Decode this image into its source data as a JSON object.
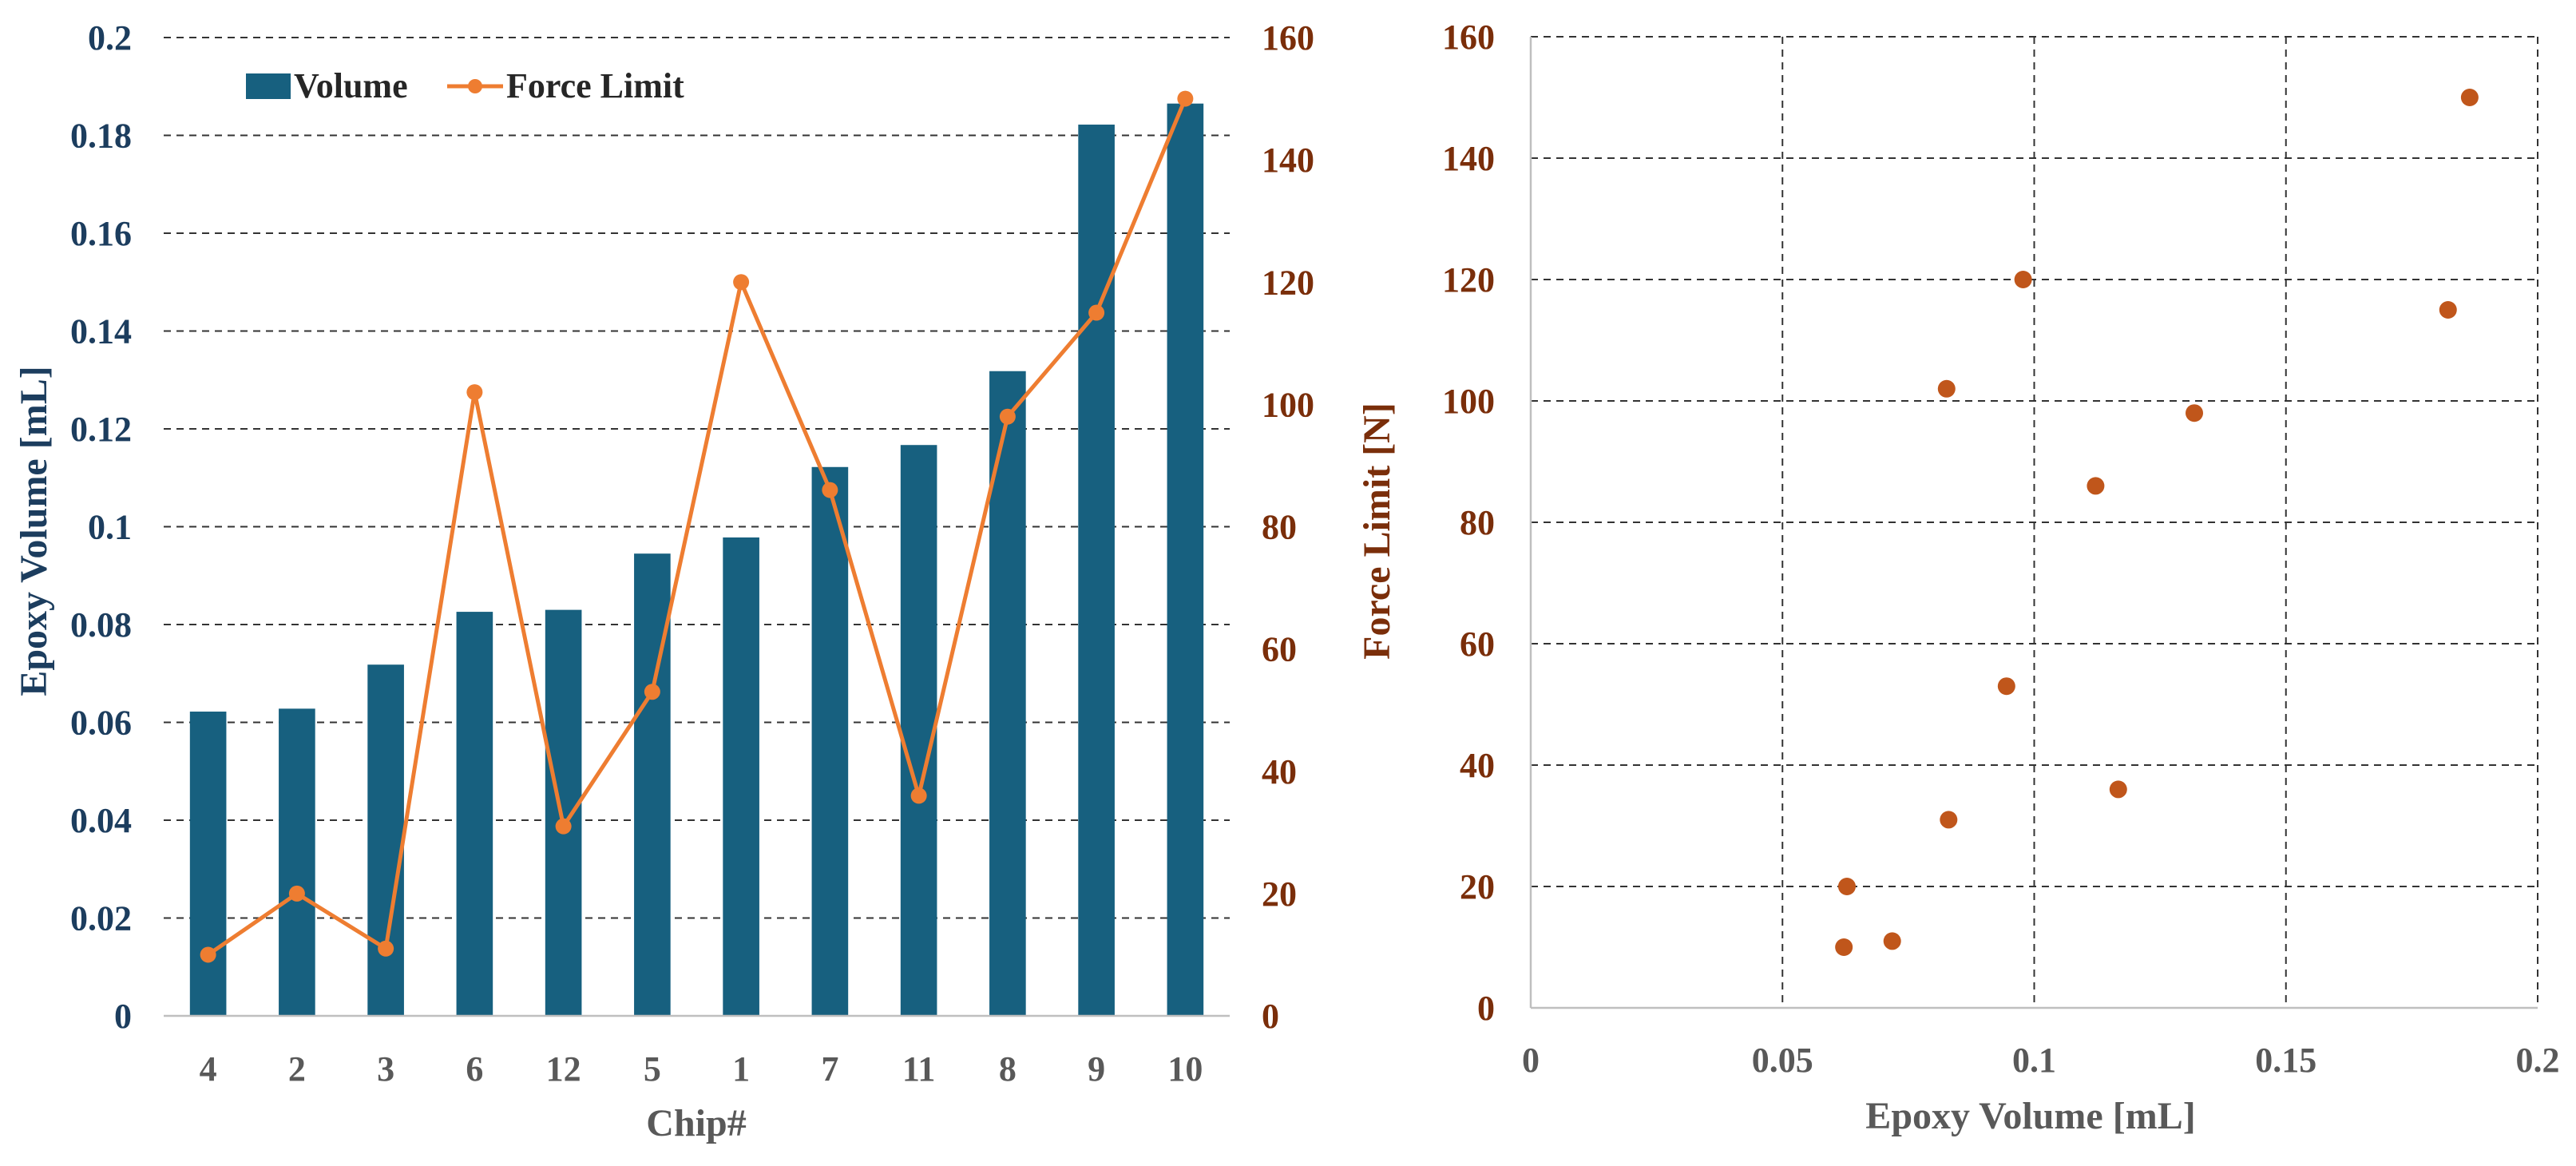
{
  "colors": {
    "bar": "#17607f",
    "line": "#ee7d31",
    "scatter": "#c0561b",
    "left_axis_text": "#1c3d5e",
    "right_axis_text": "#7a2e0a",
    "x_axis_text": "#595959"
  },
  "chart_data": [
    {
      "type": "bar",
      "combo": "bar-line-dual-axis",
      "categories": [
        "4",
        "2",
        "3",
        "6",
        "12",
        "5",
        "1",
        "7",
        "11",
        "8",
        "9",
        "10"
      ],
      "series": [
        {
          "name": "Volume",
          "type": "bar",
          "axis": "left",
          "values": [
            0.0622,
            0.0628,
            0.0718,
            0.0826,
            0.083,
            0.0945,
            0.0978,
            0.1122,
            0.1167,
            0.1318,
            0.1822,
            0.1865
          ]
        },
        {
          "name": "Force Limit",
          "type": "line",
          "axis": "right",
          "values": [
            10,
            20,
            11,
            102,
            31,
            53,
            120,
            86,
            36,
            98,
            115,
            150
          ]
        }
      ],
      "xlabel": "Chip#",
      "ylabel": "Epoxy Volume [mL]",
      "y2label": "Force Limit [N]",
      "ylim": [
        0,
        0.2
      ],
      "y2lim": [
        0,
        160
      ],
      "yticks": [
        "0",
        "0.02",
        "0.04",
        "0.06",
        "0.08",
        "0.1",
        "0.12",
        "0.14",
        "0.16",
        "0.18",
        "0.2"
      ],
      "y2ticks": [
        "0",
        "20",
        "40",
        "60",
        "80",
        "100",
        "120",
        "140",
        "160"
      ],
      "grid": "horizontal dashed",
      "legend": "top-left"
    },
    {
      "type": "scatter",
      "points": [
        {
          "x": 0.0622,
          "y": 10
        },
        {
          "x": 0.0628,
          "y": 20
        },
        {
          "x": 0.0718,
          "y": 11
        },
        {
          "x": 0.0826,
          "y": 102
        },
        {
          "x": 0.083,
          "y": 31
        },
        {
          "x": 0.0945,
          "y": 53
        },
        {
          "x": 0.0978,
          "y": 120
        },
        {
          "x": 0.1122,
          "y": 86
        },
        {
          "x": 0.1167,
          "y": 36
        },
        {
          "x": 0.1318,
          "y": 98
        },
        {
          "x": 0.1822,
          "y": 115
        },
        {
          "x": 0.1865,
          "y": 150
        }
      ],
      "xlabel": "Epoxy Volume [mL]",
      "ylabel": "Force Limit [N]",
      "xlim": [
        0,
        0.2
      ],
      "ylim": [
        0,
        160
      ],
      "xticks": [
        "0",
        "0.05",
        "0.1",
        "0.15",
        "0.2"
      ],
      "yticks": [
        "0",
        "20",
        "40",
        "60",
        "80",
        "100",
        "120",
        "140",
        "160"
      ],
      "grid": "both dashed",
      "legend": "none"
    }
  ]
}
